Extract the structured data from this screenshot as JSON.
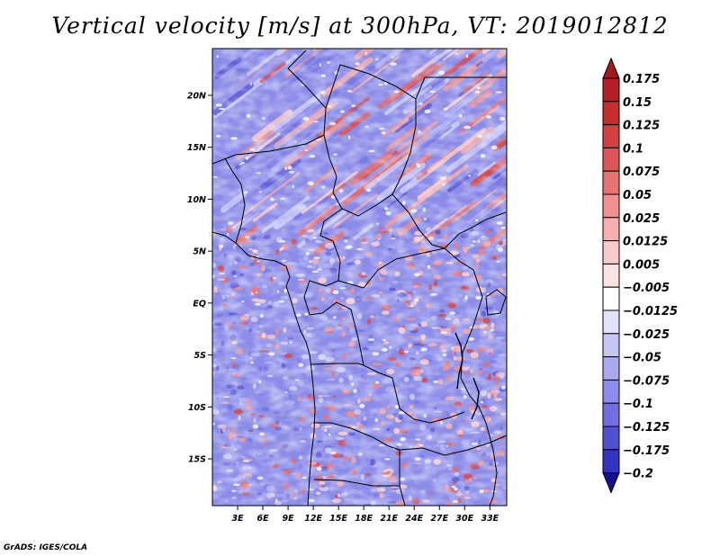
{
  "title": "Vertical velocity [m/s] at 300hPa, VT: 2019012812",
  "credit": "GrADS: IGES/COLA",
  "map": {
    "lat_range": [
      -19.5,
      24.5
    ],
    "lon_range": [
      0,
      35
    ],
    "lat_ticks": [
      {
        "value": 20,
        "label": "20N"
      },
      {
        "value": 15,
        "label": "15N"
      },
      {
        "value": 10,
        "label": "10N"
      },
      {
        "value": 5,
        "label": "5N"
      },
      {
        "value": 0,
        "label": "EQ"
      },
      {
        "value": -5,
        "label": "5S"
      },
      {
        "value": -10,
        "label": "10S"
      },
      {
        "value": -15,
        "label": "15S"
      }
    ],
    "lon_ticks": [
      {
        "value": 3,
        "label": "3E"
      },
      {
        "value": 6,
        "label": "6E"
      },
      {
        "value": 9,
        "label": "9E"
      },
      {
        "value": 12,
        "label": "12E"
      },
      {
        "value": 15,
        "label": "15E"
      },
      {
        "value": 18,
        "label": "18E"
      },
      {
        "value": 21,
        "label": "21E"
      },
      {
        "value": 24,
        "label": "24E"
      },
      {
        "value": 27,
        "label": "27E"
      },
      {
        "value": 30,
        "label": "30E"
      },
      {
        "value": 33,
        "label": "33E"
      }
    ]
  },
  "colorbar": {
    "levels": [
      {
        "label": "0.175",
        "color": "#b51f24"
      },
      {
        "label": "0.15",
        "color": "#c62e2e"
      },
      {
        "label": "0.125",
        "color": "#d44040"
      },
      {
        "label": "0.1",
        "color": "#e05555"
      },
      {
        "label": "0.075",
        "color": "#e87373"
      },
      {
        "label": "0.05",
        "color": "#f09090"
      },
      {
        "label": "0.025",
        "color": "#f6b0b0"
      },
      {
        "label": "0.0125",
        "color": "#facaca"
      },
      {
        "label": "0.005",
        "color": "#fde2e2"
      },
      {
        "label": "−0.005",
        "color": "#ffffff"
      },
      {
        "label": "−0.0125",
        "color": "#e2e2fb"
      },
      {
        "label": "−0.025",
        "color": "#c6c6f6"
      },
      {
        "label": "−0.05",
        "color": "#aaaaf2"
      },
      {
        "label": "−0.075",
        "color": "#8c8cec"
      },
      {
        "label": "−0.1",
        "color": "#7070e2"
      },
      {
        "label": "−0.125",
        "color": "#5050d4"
      },
      {
        "label": "−0.175",
        "color": "#3434c0"
      },
      {
        "label": "−0.2",
        "color": "#1c1ca8"
      }
    ],
    "top_arrow_color": "#a01a1e",
    "bottom_arrow_color": "#12128c"
  }
}
